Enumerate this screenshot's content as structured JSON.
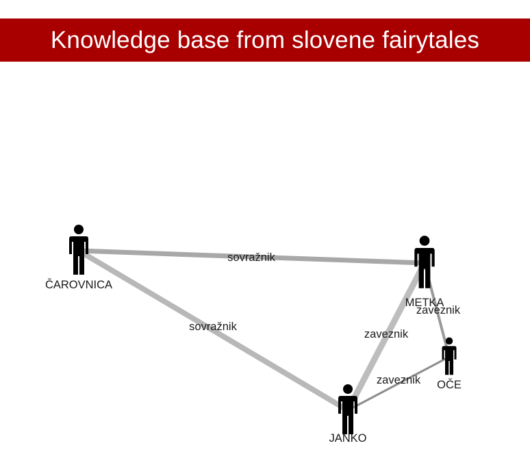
{
  "header": {
    "title": "Knowledge base from slovene fairytales"
  },
  "graph": {
    "node_icon": "person-icon",
    "node_color": "#000000",
    "nodes": [
      {
        "id": "carovnica",
        "label": "ČAROVNICA"
      },
      {
        "id": "metka",
        "label": "METKA"
      },
      {
        "id": "janko",
        "label": "JANKO"
      },
      {
        "id": "oce",
        "label": "OČE"
      }
    ],
    "edges": [
      {
        "source": "carovnica",
        "target": "metka",
        "label": "sovražnik",
        "color": "#a8a8a8"
      },
      {
        "source": "carovnica",
        "target": "janko",
        "label": "sovražnik",
        "color": "#b8b8b8"
      },
      {
        "source": "janko",
        "target": "metka",
        "label": "zaveznik",
        "color": "#bdbdbd"
      },
      {
        "source": "metka",
        "target": "oce",
        "label": "zaveznik",
        "color": "#9a9a9a"
      },
      {
        "source": "janko",
        "target": "oce",
        "label": "zaveznik",
        "color": "#8c8c8c"
      }
    ]
  }
}
